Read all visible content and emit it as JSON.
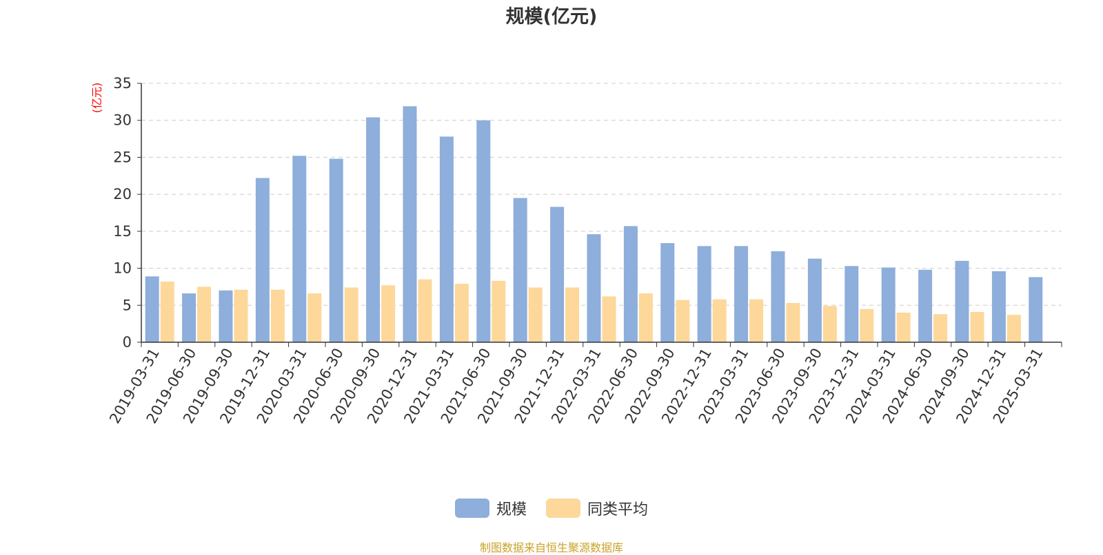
{
  "chart_data": {
    "type": "bar",
    "title": "规模(亿元)",
    "ylabel": "(亿元)",
    "xlabel": "",
    "ylim": [
      0,
      35
    ],
    "yticks": [
      "0",
      "5",
      "10",
      "15",
      "20",
      "25",
      "30",
      "35"
    ],
    "grid": true,
    "legend_position": "bottom-center",
    "categories": [
      "2019-03-31",
      "2019-06-30",
      "2019-09-30",
      "2019-12-31",
      "2020-03-31",
      "2020-06-30",
      "2020-09-30",
      "2020-12-31",
      "2021-03-31",
      "2021-06-30",
      "2021-09-30",
      "2021-12-31",
      "2022-03-31",
      "2022-06-30",
      "2022-09-30",
      "2022-12-31",
      "2023-03-31",
      "2023-06-30",
      "2023-09-30",
      "2023-12-31",
      "2024-03-31",
      "2024-06-30",
      "2024-09-30",
      "2024-12-31",
      "2025-03-31"
    ],
    "series": [
      {
        "name": "规模",
        "color": "#8eaedb",
        "values": [
          8.9,
          6.6,
          7.0,
          22.2,
          25.2,
          24.8,
          30.4,
          31.9,
          27.8,
          30.0,
          19.5,
          18.3,
          14.6,
          15.7,
          13.4,
          13.0,
          13.0,
          12.3,
          11.3,
          10.3,
          10.1,
          9.8,
          11.0,
          9.6,
          8.8
        ]
      },
      {
        "name": "同类平均",
        "color": "#fdd89a",
        "values": [
          8.2,
          7.5,
          7.1,
          7.1,
          6.6,
          7.4,
          7.7,
          8.5,
          7.9,
          8.3,
          7.4,
          7.4,
          6.2,
          6.6,
          5.7,
          5.8,
          5.8,
          5.3,
          4.9,
          4.5,
          4.0,
          3.8,
          4.1,
          3.7,
          null
        ]
      }
    ]
  },
  "source_note": "制图数据来自恒生聚源数据库",
  "colors": {
    "axis": "#333333",
    "grid": "#cccccc",
    "ylabel": "#ff0000",
    "source": "#c9a227"
  }
}
